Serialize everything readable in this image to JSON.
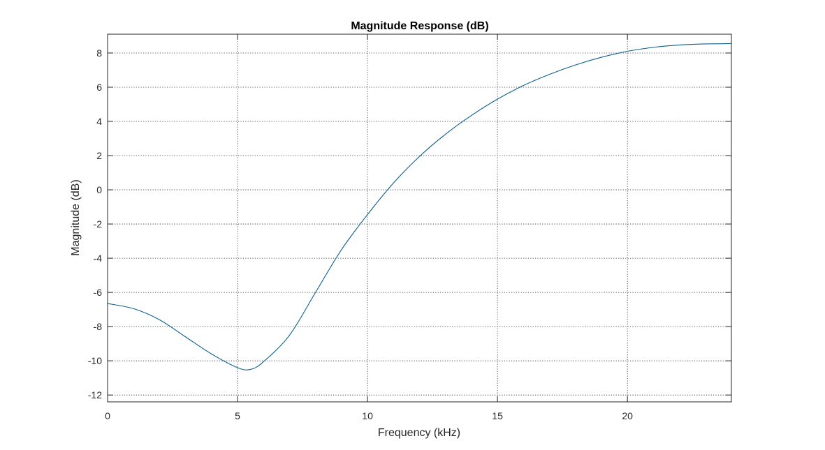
{
  "chart_data": {
    "type": "line",
    "title": "Magnitude Response (dB)",
    "xlabel": "Frequency (kHz)",
    "ylabel": "Magnitude (dB)",
    "xlim": [
      0,
      24
    ],
    "ylim": [
      -12.4,
      9.1
    ],
    "xticks": [
      0,
      5,
      10,
      15,
      20
    ],
    "yticks": [
      -12,
      -10,
      -8,
      -6,
      -4,
      -2,
      0,
      2,
      4,
      6,
      8
    ],
    "grid": true,
    "colors": {
      "line": "#0b5f8c",
      "axes": "#262626"
    },
    "series": [
      {
        "x": [
          0,
          1,
          2,
          3,
          4,
          5,
          5.5,
          6,
          7,
          8,
          9,
          10,
          11,
          12,
          13,
          14,
          15,
          16,
          17,
          18,
          19,
          20,
          21,
          22,
          23,
          24
        ],
        "y": [
          -6.65,
          -6.95,
          -7.6,
          -8.6,
          -9.6,
          -10.4,
          -10.5,
          -10.05,
          -8.5,
          -6.0,
          -3.5,
          -1.45,
          0.4,
          1.95,
          3.25,
          4.35,
          5.3,
          6.1,
          6.75,
          7.3,
          7.75,
          8.1,
          8.33,
          8.47,
          8.53,
          8.55
        ]
      }
    ]
  }
}
